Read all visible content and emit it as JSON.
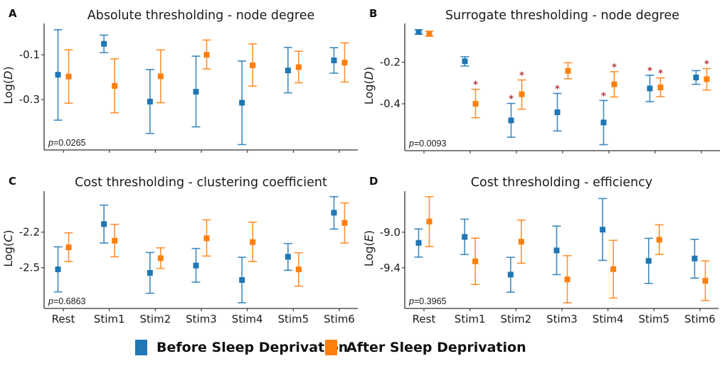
{
  "chart_data": [
    {
      "panel_label": "A",
      "type": "scatter",
      "subtype": "errorbar",
      "title": "Absolute thresholding - node degree",
      "xlabel": "",
      "ylabel": "Log(D)",
      "ylabel_plain": "Log(",
      "ylabel_italic": "D",
      "ylabel_close": ")",
      "categories": [
        "Rest",
        "Stim1",
        "Stim2",
        "Stim3",
        "Stim4",
        "Stim5",
        "Stim6"
      ],
      "show_x_tick_labels": false,
      "yticks": [
        -0.1,
        -0.3
      ],
      "ytick_labels": [
        "-0.1",
        "-0.3"
      ],
      "ylim": [
        -0.525,
        0.04
      ],
      "annotation": {
        "p_label": "p",
        "p_value": "=0.0265"
      },
      "series": [
        {
          "name": "Before Sleep Deprivation",
          "color": "#1f77b4",
          "values": [
            -0.189,
            -0.051,
            -0.309,
            -0.265,
            -0.314,
            -0.17,
            -0.125
          ],
          "upper": [
            0.012,
            -0.012,
            -0.166,
            -0.106,
            -0.128,
            -0.067,
            -0.068
          ],
          "lower": [
            -0.392,
            -0.09,
            -0.451,
            -0.422,
            -0.501,
            -0.27,
            -0.182
          ],
          "significant": [
            false,
            false,
            false,
            false,
            false,
            false,
            false
          ]
        },
        {
          "name": "After Sleep Deprivation",
          "color": "#ff7f0e",
          "values": [
            -0.197,
            -0.239,
            -0.196,
            -0.1,
            -0.147,
            -0.155,
            -0.135
          ],
          "upper": [
            -0.078,
            -0.118,
            -0.078,
            -0.034,
            -0.051,
            -0.084,
            -0.047
          ],
          "lower": [
            -0.316,
            -0.359,
            -0.314,
            -0.163,
            -0.24,
            -0.225,
            -0.222
          ],
          "significant": [
            false,
            false,
            false,
            false,
            false,
            false,
            false
          ]
        }
      ]
    },
    {
      "panel_label": "B",
      "type": "scatter",
      "subtype": "errorbar",
      "title": "Surrogate thresholding - node degree",
      "xlabel": "",
      "ylabel": "Log(D)",
      "ylabel_plain": "Log(",
      "ylabel_italic": "D",
      "ylabel_close": ")",
      "categories": [
        "Rest",
        "Stim1",
        "Stim2",
        "Stim3",
        "Stim4",
        "Stim5",
        "Stim6"
      ],
      "show_x_tick_labels": false,
      "yticks": [
        -0.2,
        -0.4
      ],
      "ytick_labels": [
        "-0.2",
        "-0.4"
      ],
      "ylim": [
        -0.626,
        -0.0125
      ],
      "annotation": {
        "p_label": "p",
        "p_value": "=0.0093"
      },
      "significance_marker": "*",
      "series": [
        {
          "name": "Before Sleep Deprivation",
          "color": "#1f77b4",
          "values": [
            -0.054,
            -0.195,
            -0.48,
            -0.441,
            -0.49,
            -0.326,
            -0.273
          ],
          "upper": [
            -0.043,
            -0.173,
            -0.398,
            -0.35,
            -0.384,
            -0.262,
            -0.24
          ],
          "lower": [
            -0.064,
            -0.218,
            -0.561,
            -0.531,
            -0.597,
            -0.39,
            -0.306
          ],
          "significant": [
            false,
            false,
            true,
            true,
            true,
            true,
            false
          ]
        },
        {
          "name": "After Sleep Deprivation",
          "color": "#ff7f0e",
          "values": [
            -0.063,
            -0.4,
            -0.354,
            -0.241,
            -0.306,
            -0.321,
            -0.281
          ],
          "upper": [
            -0.05,
            -0.33,
            -0.285,
            -0.202,
            -0.245,
            -0.275,
            -0.23
          ],
          "lower": [
            -0.074,
            -0.467,
            -0.426,
            -0.279,
            -0.367,
            -0.365,
            -0.334
          ],
          "significant": [
            false,
            true,
            true,
            false,
            true,
            true,
            true
          ]
        }
      ]
    },
    {
      "panel_label": "C",
      "type": "scatter",
      "subtype": "errorbar",
      "title": "Cost thresholding - clustering coefficient",
      "xlabel": "",
      "ylabel": "Log(C)",
      "ylabel_plain": "Log(",
      "ylabel_italic": "C",
      "ylabel_close": ")",
      "categories": [
        "Rest",
        "Stim1",
        "Stim2",
        "Stim3",
        "Stim4",
        "Stim5",
        "Stim6"
      ],
      "show_x_tick_labels": true,
      "yticks": [
        -2.2,
        -2.5
      ],
      "ytick_labels": [
        "-2.2",
        "-2.5"
      ],
      "ylim": [
        -2.844,
        -1.854
      ],
      "annotation": {
        "p_label": "p",
        "p_value": "=0.6863"
      },
      "series": [
        {
          "name": "Before Sleep Deprivation",
          "color": "#1f77b4",
          "values": [
            -2.514,
            -2.132,
            -2.544,
            -2.482,
            -2.604,
            -2.408,
            -2.036
          ],
          "upper": [
            -2.324,
            -1.972,
            -2.372,
            -2.338,
            -2.412,
            -2.296,
            -1.9
          ],
          "lower": [
            -2.704,
            -2.292,
            -2.716,
            -2.622,
            -2.796,
            -2.522,
            -2.174
          ],
          "significant": [
            false,
            false,
            false,
            false,
            false,
            false,
            false
          ]
        },
        {
          "name": "After Sleep Deprivation",
          "color": "#ff7f0e",
          "values": [
            -2.328,
            -2.272,
            -2.42,
            -2.252,
            -2.284,
            -2.514,
            -2.122
          ],
          "upper": [
            -2.206,
            -2.134,
            -2.332,
            -2.096,
            -2.116,
            -2.374,
            -1.954
          ],
          "lower": [
            -2.448,
            -2.408,
            -2.506,
            -2.402,
            -2.448,
            -2.656,
            -2.292
          ],
          "significant": [
            false,
            false,
            false,
            false,
            false,
            false,
            false
          ]
        }
      ]
    },
    {
      "panel_label": "D",
      "type": "scatter",
      "subtype": "errorbar",
      "title": "Cost thresholding - efficiency",
      "xlabel": "",
      "ylabel": "Log(E)",
      "ylabel_plain": "Log(",
      "ylabel_italic": "E",
      "ylabel_close": ")",
      "categories": [
        "Rest",
        "Stim1",
        "Stim2",
        "Stim3",
        "Stim4",
        "Stim5",
        "Stim6"
      ],
      "show_x_tick_labels": true,
      "yticks": [
        -9.0,
        -9.4
      ],
      "ytick_labels": [
        "-9.0",
        "-9.4"
      ],
      "ylim": [
        -9.858,
        -8.538
      ],
      "annotation": {
        "p_label": "p",
        "p_value": "=0.3965"
      },
      "series": [
        {
          "name": "Before Sleep Deprivation",
          "color": "#1f77b4",
          "values": [
            -9.12,
            -9.053,
            -9.477,
            -9.205,
            -8.971,
            -9.323,
            -9.296
          ],
          "upper": [
            -8.963,
            -8.853,
            -9.283,
            -8.931,
            -8.621,
            -9.069,
            -9.08
          ],
          "lower": [
            -9.28,
            -9.251,
            -9.675,
            -9.477,
            -9.317,
            -9.576,
            -9.517
          ],
          "significant": [
            false,
            false,
            false,
            false,
            false,
            false,
            false
          ]
        },
        {
          "name": "After Sleep Deprivation",
          "color": "#ff7f0e",
          "values": [
            -8.88,
            -9.328,
            -9.107,
            -9.531,
            -9.416,
            -9.085,
            -9.547
          ],
          "upper": [
            -8.6,
            -9.067,
            -8.864,
            -9.264,
            -9.091,
            -8.917,
            -9.323
          ],
          "lower": [
            -9.16,
            -9.589,
            -9.349,
            -9.795,
            -9.741,
            -9.251,
            -9.768
          ],
          "significant": [
            false,
            false,
            false,
            false,
            false,
            false,
            false
          ]
        }
      ]
    }
  ],
  "legend": {
    "placement": "bottom-center",
    "items": [
      {
        "label": "Before Sleep Deprivation",
        "color": "#1f77b4"
      },
      {
        "label": "After Sleep Deprivation",
        "color": "#ff7f0e"
      }
    ]
  },
  "colors": {
    "significance": "#b5323a",
    "axis": "#333333",
    "text": "#1a1a1a"
  }
}
